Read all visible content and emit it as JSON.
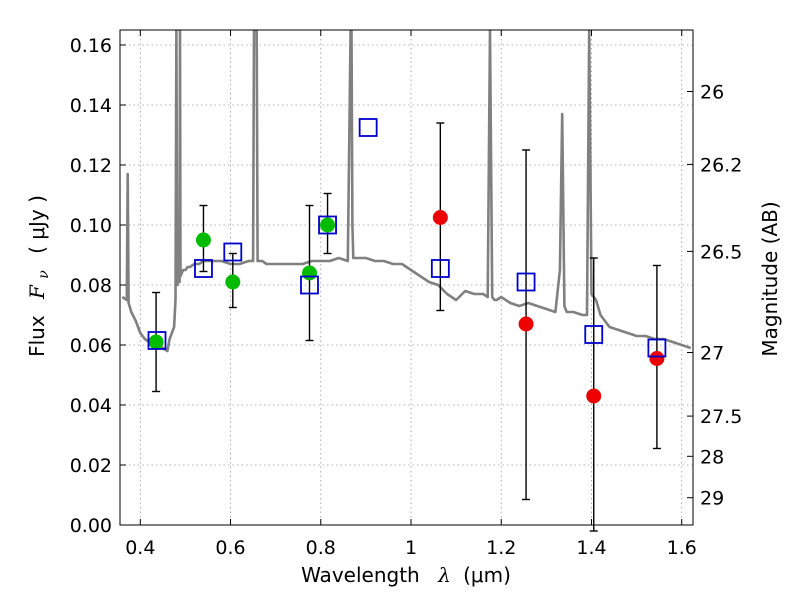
{
  "chart_data": {
    "type": "scatter",
    "xlabel": "Wavelength",
    "xlabel_symbol": "λ",
    "xlabel_unit": "(μm)",
    "ylabel": "Flux",
    "ylabel_symbol": "F",
    "ylabel_subscript": "ν",
    "ylabel_unit": "( μJy )",
    "y2label": "Magnitude (AB)",
    "xlim": [
      0.355,
      1.625
    ],
    "ylim": [
      0.0,
      0.165
    ],
    "grid": true,
    "x_ticks": [
      0.4,
      0.6,
      0.8,
      1.0,
      1.2,
      1.4,
      1.6
    ],
    "x_tick_labels": [
      "0.4",
      "0.6",
      "0.8",
      "1",
      "1.2",
      "1.4",
      "1.6"
    ],
    "y_ticks": [
      0.0,
      0.02,
      0.04,
      0.06,
      0.08,
      0.1,
      0.12,
      0.14,
      0.16
    ],
    "y_tick_labels": [
      "0.00",
      "0.02",
      "0.04",
      "0.06",
      "0.08",
      "0.10",
      "0.12",
      "0.14",
      "0.16"
    ],
    "y2_ticks": [
      {
        "label": "26",
        "flux": 0.1445
      },
      {
        "label": "26.2",
        "flux": 0.1202
      },
      {
        "label": "26.5",
        "flux": 0.0912
      },
      {
        "label": "27",
        "flux": 0.0575
      },
      {
        "label": "27.5",
        "flux": 0.0363
      },
      {
        "label": "28",
        "flux": 0.0229
      },
      {
        "label": "29",
        "flux": 0.0091
      }
    ],
    "colors": {
      "model": "#808080",
      "green": "#00bb00",
      "red": "#ee0000",
      "square": "#0000cc",
      "error": "#000000",
      "grid": "#9a9a9a"
    },
    "series": [
      {
        "name": "model spectrum",
        "type": "line",
        "x": [
          0.36,
          0.37,
          0.372,
          0.374,
          0.38,
          0.39,
          0.4,
          0.41,
          0.42,
          0.43,
          0.44,
          0.45,
          0.46,
          0.465,
          0.47,
          0.475,
          0.478,
          0.48,
          0.482,
          0.485,
          0.487,
          0.488,
          0.489,
          0.492,
          0.495,
          0.5,
          0.505,
          0.51,
          0.52,
          0.53,
          0.54,
          0.55,
          0.56,
          0.58,
          0.6,
          0.62,
          0.64,
          0.65,
          0.652,
          0.655,
          0.658,
          0.66,
          0.663,
          0.67,
          0.68,
          0.7,
          0.72,
          0.74,
          0.76,
          0.78,
          0.8,
          0.82,
          0.84,
          0.86,
          0.866,
          0.868,
          0.87,
          0.872,
          0.88,
          0.9,
          0.92,
          0.94,
          0.96,
          0.98,
          1.0,
          1.02,
          1.04,
          1.06,
          1.08,
          1.1,
          1.12,
          1.14,
          1.16,
          1.17,
          1.175,
          1.18,
          1.185,
          1.19,
          1.2,
          1.22,
          1.24,
          1.26,
          1.28,
          1.3,
          1.32,
          1.33,
          1.335,
          1.34,
          1.345,
          1.35,
          1.36,
          1.38,
          1.39,
          1.395,
          1.4,
          1.405,
          1.41,
          1.42,
          1.44,
          1.46,
          1.48,
          1.5,
          1.52,
          1.54,
          1.56,
          1.58,
          1.6,
          1.62
        ],
        "y": [
          0.076,
          0.075,
          0.117,
          0.074,
          0.071,
          0.068,
          0.064,
          0.062,
          0.061,
          0.06,
          0.06,
          0.059,
          0.058,
          0.062,
          0.064,
          0.066,
          0.075,
          0.165,
          0.08,
          0.083,
          0.081,
          0.165,
          0.083,
          0.084,
          0.085,
          0.085,
          0.086,
          0.086,
          0.087,
          0.087,
          0.088,
          0.088,
          0.088,
          0.088,
          0.087,
          0.087,
          0.088,
          0.088,
          0.165,
          0.165,
          0.165,
          0.088,
          0.088,
          0.088,
          0.087,
          0.087,
          0.087,
          0.087,
          0.087,
          0.088,
          0.088,
          0.088,
          0.089,
          0.088,
          0.165,
          0.165,
          0.1,
          0.089,
          0.089,
          0.089,
          0.088,
          0.088,
          0.087,
          0.087,
          0.085,
          0.083,
          0.081,
          0.08,
          0.077,
          0.075,
          0.078,
          0.077,
          0.077,
          0.076,
          0.165,
          0.076,
          0.075,
          0.075,
          0.076,
          0.074,
          0.073,
          0.074,
          0.073,
          0.072,
          0.071,
          0.085,
          0.137,
          0.073,
          0.071,
          0.071,
          0.071,
          0.07,
          0.07,
          0.165,
          0.077,
          0.076,
          0.075,
          0.07,
          0.066,
          0.065,
          0.064,
          0.063,
          0.063,
          0.062,
          0.062,
          0.061,
          0.06,
          0.059
        ]
      },
      {
        "name": "green points",
        "type": "scatter",
        "marker": "circle",
        "x": [
          0.435,
          0.54,
          0.605,
          0.775,
          0.815
        ],
        "y": [
          0.061,
          0.095,
          0.081,
          0.084,
          0.1
        ],
        "yerr_low": [
          0.0445,
          0.0845,
          0.0725,
          0.0615,
          0.0905
        ],
        "yerr_high": [
          0.0775,
          0.1065,
          0.0905,
          0.1065,
          0.1105
        ]
      },
      {
        "name": "red points",
        "type": "scatter",
        "marker": "circle",
        "x": [
          1.065,
          1.255,
          1.405,
          1.545
        ],
        "y": [
          0.1025,
          0.067,
          0.043,
          0.0555
        ],
        "yerr_low": [
          0.0715,
          0.0085,
          -0.002,
          0.0255
        ],
        "yerr_high": [
          0.134,
          0.125,
          0.089,
          0.0865
        ]
      },
      {
        "name": "model photometry",
        "type": "scatter",
        "marker": "square",
        "x": [
          0.437,
          0.54,
          0.605,
          0.775,
          0.815,
          0.905,
          1.065,
          1.255,
          1.405,
          1.545
        ],
        "y": [
          0.0615,
          0.0855,
          0.091,
          0.08,
          0.1,
          0.1325,
          0.0855,
          0.081,
          0.0635,
          0.059
        ]
      }
    ]
  }
}
